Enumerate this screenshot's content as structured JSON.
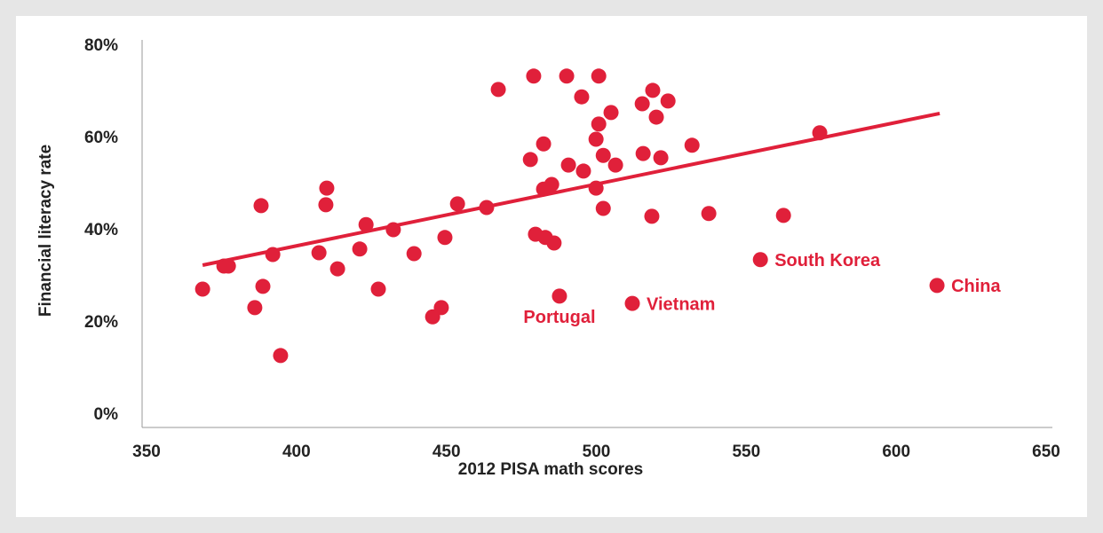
{
  "chart_data": {
    "type": "scatter",
    "xlabel": "2012 PISA math scores",
    "ylabel": "Financial literacy rate",
    "color": "#e0203a",
    "xlim": [
      350,
      650
    ],
    "xticks": [
      350,
      400,
      450,
      500,
      550,
      600,
      650
    ],
    "ylim": [
      0,
      80
    ],
    "yticks": [
      {
        "value": 0,
        "label": "0%"
      },
      {
        "value": 20,
        "label": "20%"
      },
      {
        "value": 40,
        "label": "40%"
      },
      {
        "value": 60,
        "label": "60%"
      },
      {
        "value": 80,
        "label": "80%"
      }
    ],
    "x": [
      368.7,
      375.8,
      377.3,
      386.1,
      388.2,
      388.8,
      392.1,
      394.7,
      407.5,
      409.8,
      410.1,
      413.7,
      421.1,
      423.2,
      427.3,
      432.3,
      439.2,
      445.4,
      448.3,
      449.5,
      453.7,
      463.4,
      467.3,
      479.1,
      490.1,
      500.8,
      495.1,
      518.8,
      515.3,
      523.9,
      520.0,
      504.9,
      500.8,
      499.9,
      482.4,
      531.9,
      574.5,
      478.0,
      502.3,
      506.4,
      515.6,
      521.5,
      490.7,
      495.7,
      499.9,
      482.4,
      485.1,
      502.3,
      518.5,
      537.5,
      562.4,
      479.7,
      483.0,
      485.9,
      554.7,
      613.6,
      487.7,
      512.0
    ],
    "values": [
      27.3,
      32.3,
      32.3,
      23.3,
      45.4,
      27.9,
      34.8,
      12.9,
      35.2,
      45.6,
      49.2,
      31.7,
      36.0,
      41.3,
      27.3,
      40.2,
      35.0,
      21.3,
      23.3,
      38.5,
      45.8,
      45.0,
      70.6,
      73.5,
      73.5,
      73.5,
      69.0,
      70.4,
      67.5,
      68.1,
      64.6,
      65.6,
      63.1,
      59.8,
      58.8,
      58.5,
      61.2,
      55.4,
      56.3,
      54.2,
      56.7,
      55.8,
      54.2,
      52.9,
      49.2,
      49.0,
      50.0,
      44.8,
      43.1,
      43.7,
      43.3,
      39.2,
      38.5,
      37.3,
      33.7,
      28.1,
      25.8,
      24.2
    ],
    "point_labels": [
      null,
      null,
      null,
      null,
      null,
      null,
      null,
      null,
      null,
      null,
      null,
      null,
      null,
      null,
      null,
      null,
      null,
      null,
      null,
      null,
      null,
      null,
      null,
      null,
      null,
      null,
      null,
      null,
      null,
      null,
      null,
      null,
      null,
      null,
      null,
      null,
      null,
      null,
      null,
      null,
      null,
      null,
      null,
      null,
      null,
      null,
      null,
      null,
      null,
      null,
      null,
      null,
      null,
      null,
      "South Korea",
      "China",
      "Portugal",
      "Vietnam"
    ],
    "trendline": {
      "x": [
        368.7,
        614.5
      ],
      "values": [
        32.5,
        65.4
      ]
    }
  }
}
